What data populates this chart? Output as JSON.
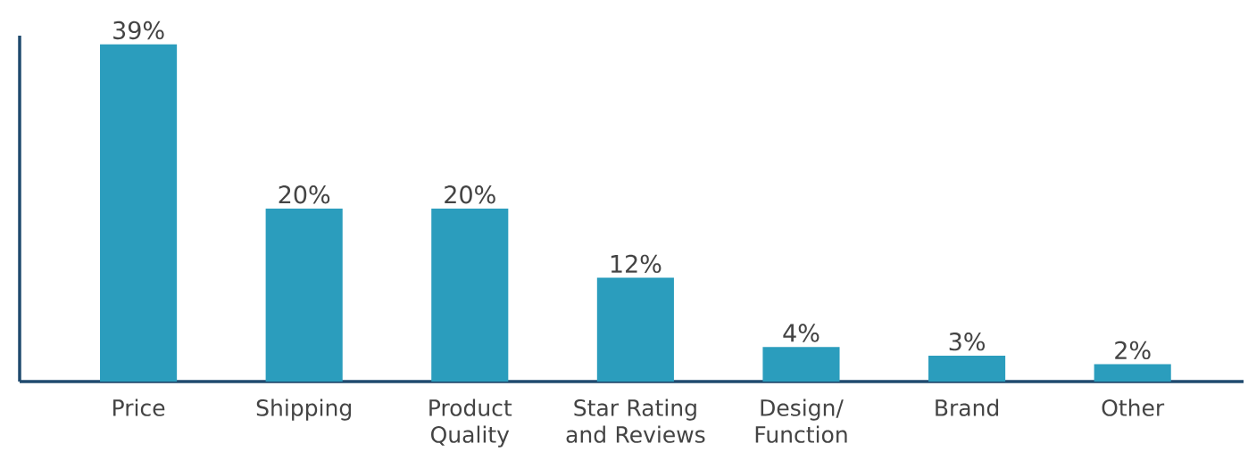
{
  "chart_data": {
    "type": "bar",
    "categories": [
      "Price",
      "Shipping",
      "Product Quality",
      "Star Rating and Reviews",
      "Design/ Function",
      "Brand",
      "Other"
    ],
    "values": [
      39,
      20,
      20,
      12,
      4,
      3,
      2
    ],
    "value_labels": [
      "39%",
      "20%",
      "20%",
      "12%",
      "4%",
      "3%",
      "2%"
    ],
    "color": "#2b9dbd",
    "ylim": [
      0,
      40
    ],
    "tick_labels": "x"
  }
}
